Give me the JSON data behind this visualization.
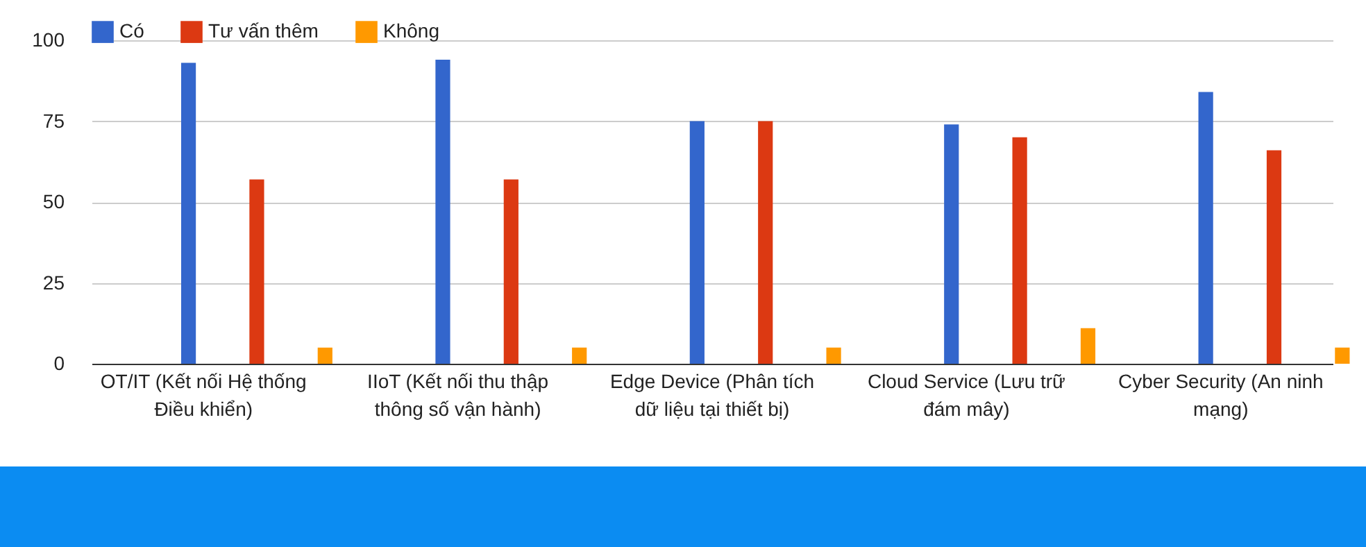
{
  "chart_data": {
    "type": "bar",
    "categories": [
      "OT/IT (Kết nối Hệ thống Điều khiển)",
      "IIoT (Kết nối thu thập thông số vận hành)",
      "Edge Device (Phân tích dữ liệu tại thiết bị)",
      "Cloud Service (Lưu trữ đám mây)",
      "Cyber Security (An ninh mạng)"
    ],
    "series": [
      {
        "name": "Có",
        "color": "#3366cc",
        "values": [
          93,
          94,
          75,
          74,
          84
        ]
      },
      {
        "name": "Tư vấn thêm",
        "color": "#dc3912",
        "values": [
          57,
          57,
          75,
          70,
          66
        ]
      },
      {
        "name": "Không",
        "color": "#ff9900",
        "values": [
          5,
          5,
          5,
          11,
          5
        ]
      }
    ],
    "ylim": [
      0,
      100
    ],
    "yticks": [
      0,
      25,
      50,
      75,
      100
    ],
    "grid": "y",
    "legend": "top left"
  }
}
